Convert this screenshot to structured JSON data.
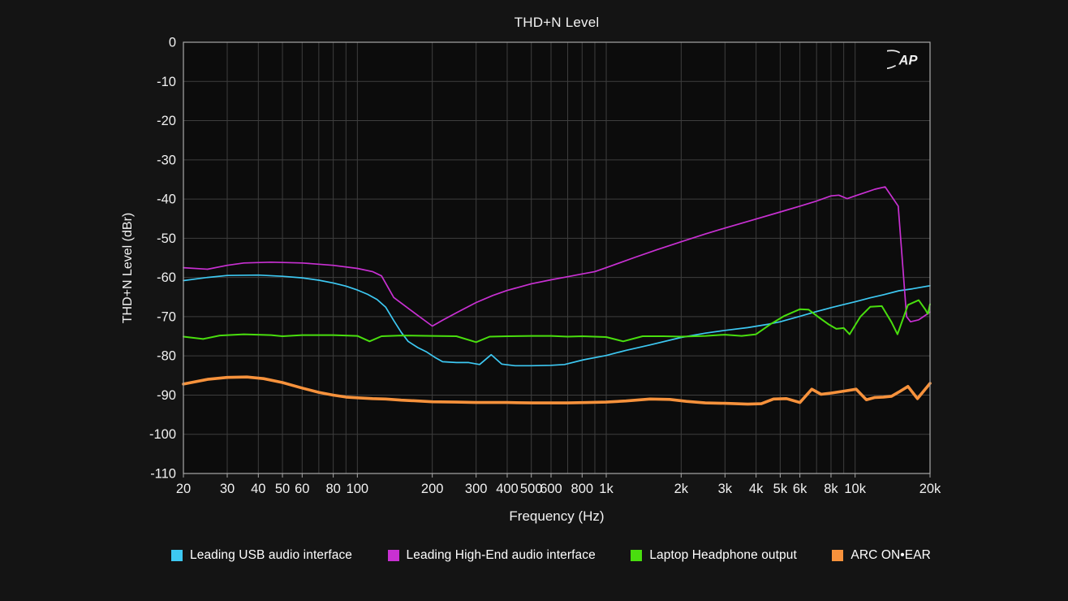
{
  "logo_text": "AP",
  "colors": {
    "page_background": "#141414",
    "plot_background": "#0c0c0c",
    "grid": "#3e3e3e",
    "frame": "#a8a8a8",
    "text": "#f2f2f2"
  },
  "chart_data": {
    "type": "line",
    "title": "THD+N Level",
    "xlabel": "Frequency (Hz)",
    "ylabel": "THD+N Level (dBr)",
    "x_scale": "log",
    "xlim": [
      20,
      20000
    ],
    "ylim": [
      -110,
      0
    ],
    "grid": true,
    "legend_position": "bottom",
    "x_ticks": [
      {
        "label": "20",
        "value": 20
      },
      {
        "label": "30",
        "value": 30
      },
      {
        "label": "40",
        "value": 40
      },
      {
        "label": "50",
        "value": 50
      },
      {
        "label": "60",
        "value": 60
      },
      {
        "label": "80",
        "value": 80
      },
      {
        "label": "100",
        "value": 100
      },
      {
        "label": "200",
        "value": 200
      },
      {
        "label": "300",
        "value": 300
      },
      {
        "label": "400",
        "value": 400
      },
      {
        "label": "500",
        "value": 500
      },
      {
        "label": "600",
        "value": 600
      },
      {
        "label": "800",
        "value": 800
      },
      {
        "label": "1k",
        "value": 1000
      },
      {
        "label": "2k",
        "value": 2000
      },
      {
        "label": "3k",
        "value": 3000
      },
      {
        "label": "4k",
        "value": 4000
      },
      {
        "label": "5k",
        "value": 5000
      },
      {
        "label": "6k",
        "value": 6000
      },
      {
        "label": "8k",
        "value": 8000
      },
      {
        "label": "10k",
        "value": 10000
      },
      {
        "label": "20k",
        "value": 20000
      }
    ],
    "y_ticks": [
      0,
      -10,
      -20,
      -30,
      -40,
      -50,
      -60,
      -70,
      -80,
      -90,
      -100,
      -110
    ],
    "series": [
      {
        "name": "Leading USB audio interface",
        "color": "#3DC8F2",
        "width": 1.7,
        "points": [
          [
            20,
            -60.8
          ],
          [
            25,
            -60.0
          ],
          [
            30,
            -59.5
          ],
          [
            40,
            -59.4
          ],
          [
            50,
            -59.7
          ],
          [
            60,
            -60.1
          ],
          [
            70,
            -60.7
          ],
          [
            80,
            -61.4
          ],
          [
            90,
            -62.2
          ],
          [
            100,
            -63.2
          ],
          [
            110,
            -64.3
          ],
          [
            120,
            -65.6
          ],
          [
            130,
            -67.6
          ],
          [
            140,
            -71.0
          ],
          [
            150,
            -74.0
          ],
          [
            160,
            -76.3
          ],
          [
            175,
            -77.9
          ],
          [
            190,
            -79.0
          ],
          [
            205,
            -80.4
          ],
          [
            220,
            -81.5
          ],
          [
            250,
            -81.7
          ],
          [
            280,
            -81.7
          ],
          [
            310,
            -82.2
          ],
          [
            345,
            -79.7
          ],
          [
            380,
            -82.1
          ],
          [
            430,
            -82.5
          ],
          [
            500,
            -82.5
          ],
          [
            600,
            -82.4
          ],
          [
            680,
            -82.2
          ],
          [
            810,
            -81.0
          ],
          [
            1000,
            -79.9
          ],
          [
            1200,
            -78.6
          ],
          [
            1500,
            -77.2
          ],
          [
            2000,
            -75.3
          ],
          [
            2500,
            -74.2
          ],
          [
            3000,
            -73.5
          ],
          [
            3700,
            -72.8
          ],
          [
            4500,
            -71.9
          ],
          [
            5000,
            -71.3
          ],
          [
            6000,
            -69.9
          ],
          [
            7000,
            -68.7
          ],
          [
            8000,
            -67.7
          ],
          [
            9000,
            -66.9
          ],
          [
            10000,
            -66.2
          ],
          [
            11500,
            -65.2
          ],
          [
            13000,
            -64.4
          ],
          [
            15000,
            -63.4
          ],
          [
            17000,
            -62.9
          ],
          [
            20000,
            -62.1
          ]
        ]
      },
      {
        "name": "Leading High-End audio interface",
        "color": "#C830D2",
        "width": 1.7,
        "points": [
          [
            20,
            -57.5
          ],
          [
            25,
            -57.9
          ],
          [
            30,
            -56.9
          ],
          [
            35,
            -56.3
          ],
          [
            45,
            -56.1
          ],
          [
            60,
            -56.3
          ],
          [
            80,
            -56.9
          ],
          [
            100,
            -57.7
          ],
          [
            115,
            -58.5
          ],
          [
            125,
            -59.6
          ],
          [
            140,
            -65.1
          ],
          [
            170,
            -69.1
          ],
          [
            200,
            -72.4
          ],
          [
            220,
            -70.9
          ],
          [
            250,
            -69.0
          ],
          [
            300,
            -66.4
          ],
          [
            350,
            -64.6
          ],
          [
            400,
            -63.3
          ],
          [
            500,
            -61.6
          ],
          [
            600,
            -60.6
          ],
          [
            700,
            -59.8
          ],
          [
            800,
            -59.1
          ],
          [
            900,
            -58.5
          ],
          [
            1000,
            -57.5
          ],
          [
            1300,
            -54.9
          ],
          [
            1600,
            -52.9
          ],
          [
            2000,
            -50.9
          ],
          [
            2500,
            -48.9
          ],
          [
            3000,
            -47.4
          ],
          [
            4000,
            -45.1
          ],
          [
            5000,
            -43.3
          ],
          [
            6000,
            -41.8
          ],
          [
            7000,
            -40.5
          ],
          [
            8000,
            -39.2
          ],
          [
            8600,
            -39.0
          ],
          [
            9300,
            -39.9
          ],
          [
            10000,
            -39.2
          ],
          [
            11000,
            -38.3
          ],
          [
            12000,
            -37.5
          ],
          [
            13200,
            -36.9
          ],
          [
            14900,
            -41.8
          ],
          [
            16100,
            -70.0
          ],
          [
            16700,
            -71.3
          ],
          [
            18000,
            -70.8
          ],
          [
            19300,
            -69.5
          ],
          [
            20000,
            -68.8
          ]
        ]
      },
      {
        "name": "Laptop Headphone output",
        "color": "#49DE0E",
        "width": 2.0,
        "points": [
          [
            20,
            -75.1
          ],
          [
            24,
            -75.7
          ],
          [
            28,
            -74.8
          ],
          [
            35,
            -74.5
          ],
          [
            45,
            -74.7
          ],
          [
            50,
            -75.0
          ],
          [
            60,
            -74.7
          ],
          [
            80,
            -74.7
          ],
          [
            100,
            -74.9
          ],
          [
            112,
            -76.3
          ],
          [
            125,
            -75.0
          ],
          [
            150,
            -74.8
          ],
          [
            200,
            -74.9
          ],
          [
            250,
            -75.0
          ],
          [
            300,
            -76.5
          ],
          [
            340,
            -75.1
          ],
          [
            400,
            -75.0
          ],
          [
            500,
            -74.9
          ],
          [
            600,
            -74.9
          ],
          [
            700,
            -75.1
          ],
          [
            800,
            -75.0
          ],
          [
            1000,
            -75.2
          ],
          [
            1170,
            -76.3
          ],
          [
            1400,
            -75.0
          ],
          [
            1700,
            -75.0
          ],
          [
            2000,
            -75.1
          ],
          [
            2500,
            -74.9
          ],
          [
            3000,
            -74.6
          ],
          [
            3500,
            -74.9
          ],
          [
            4000,
            -74.5
          ],
          [
            4600,
            -71.8
          ],
          [
            5200,
            -69.8
          ],
          [
            6000,
            -68.1
          ],
          [
            6500,
            -68.2
          ],
          [
            7200,
            -70.3
          ],
          [
            7800,
            -71.9
          ],
          [
            8400,
            -73.1
          ],
          [
            9000,
            -72.9
          ],
          [
            9500,
            -74.5
          ],
          [
            10500,
            -70.0
          ],
          [
            11500,
            -67.5
          ],
          [
            12800,
            -67.3
          ],
          [
            14000,
            -71.4
          ],
          [
            14800,
            -74.5
          ],
          [
            16300,
            -67.0
          ],
          [
            18000,
            -65.8
          ],
          [
            19200,
            -68.3
          ],
          [
            19600,
            -69.3
          ],
          [
            20000,
            -66.8
          ]
        ]
      },
      {
        "name": "ARC ON•EAR",
        "color": "#F7923C",
        "width": 3.6,
        "points": [
          [
            20,
            -87.2
          ],
          [
            25,
            -86.0
          ],
          [
            30,
            -85.5
          ],
          [
            36,
            -85.4
          ],
          [
            42,
            -85.8
          ],
          [
            50,
            -86.8
          ],
          [
            60,
            -88.2
          ],
          [
            70,
            -89.3
          ],
          [
            80,
            -90.0
          ],
          [
            90,
            -90.5
          ],
          [
            100,
            -90.7
          ],
          [
            115,
            -90.9
          ],
          [
            130,
            -91.0
          ],
          [
            150,
            -91.3
          ],
          [
            175,
            -91.5
          ],
          [
            200,
            -91.7
          ],
          [
            250,
            -91.8
          ],
          [
            300,
            -91.9
          ],
          [
            400,
            -91.9
          ],
          [
            500,
            -92.0
          ],
          [
            600,
            -92.0
          ],
          [
            700,
            -92.0
          ],
          [
            850,
            -91.9
          ],
          [
            1000,
            -91.8
          ],
          [
            1200,
            -91.5
          ],
          [
            1500,
            -91.0
          ],
          [
            1800,
            -91.1
          ],
          [
            2100,
            -91.6
          ],
          [
            2500,
            -92.0
          ],
          [
            3000,
            -92.1
          ],
          [
            3700,
            -92.3
          ],
          [
            4200,
            -92.2
          ],
          [
            4700,
            -91.0
          ],
          [
            5300,
            -90.9
          ],
          [
            6000,
            -91.9
          ],
          [
            6700,
            -88.5
          ],
          [
            7300,
            -89.8
          ],
          [
            8000,
            -89.5
          ],
          [
            9000,
            -89.0
          ],
          [
            10100,
            -88.5
          ],
          [
            11100,
            -91.2
          ],
          [
            12000,
            -90.6
          ],
          [
            13000,
            -90.5
          ],
          [
            14000,
            -90.3
          ],
          [
            15000,
            -89.2
          ],
          [
            16300,
            -87.8
          ],
          [
            17800,
            -90.9
          ],
          [
            20000,
            -87.0
          ]
        ]
      }
    ]
  }
}
